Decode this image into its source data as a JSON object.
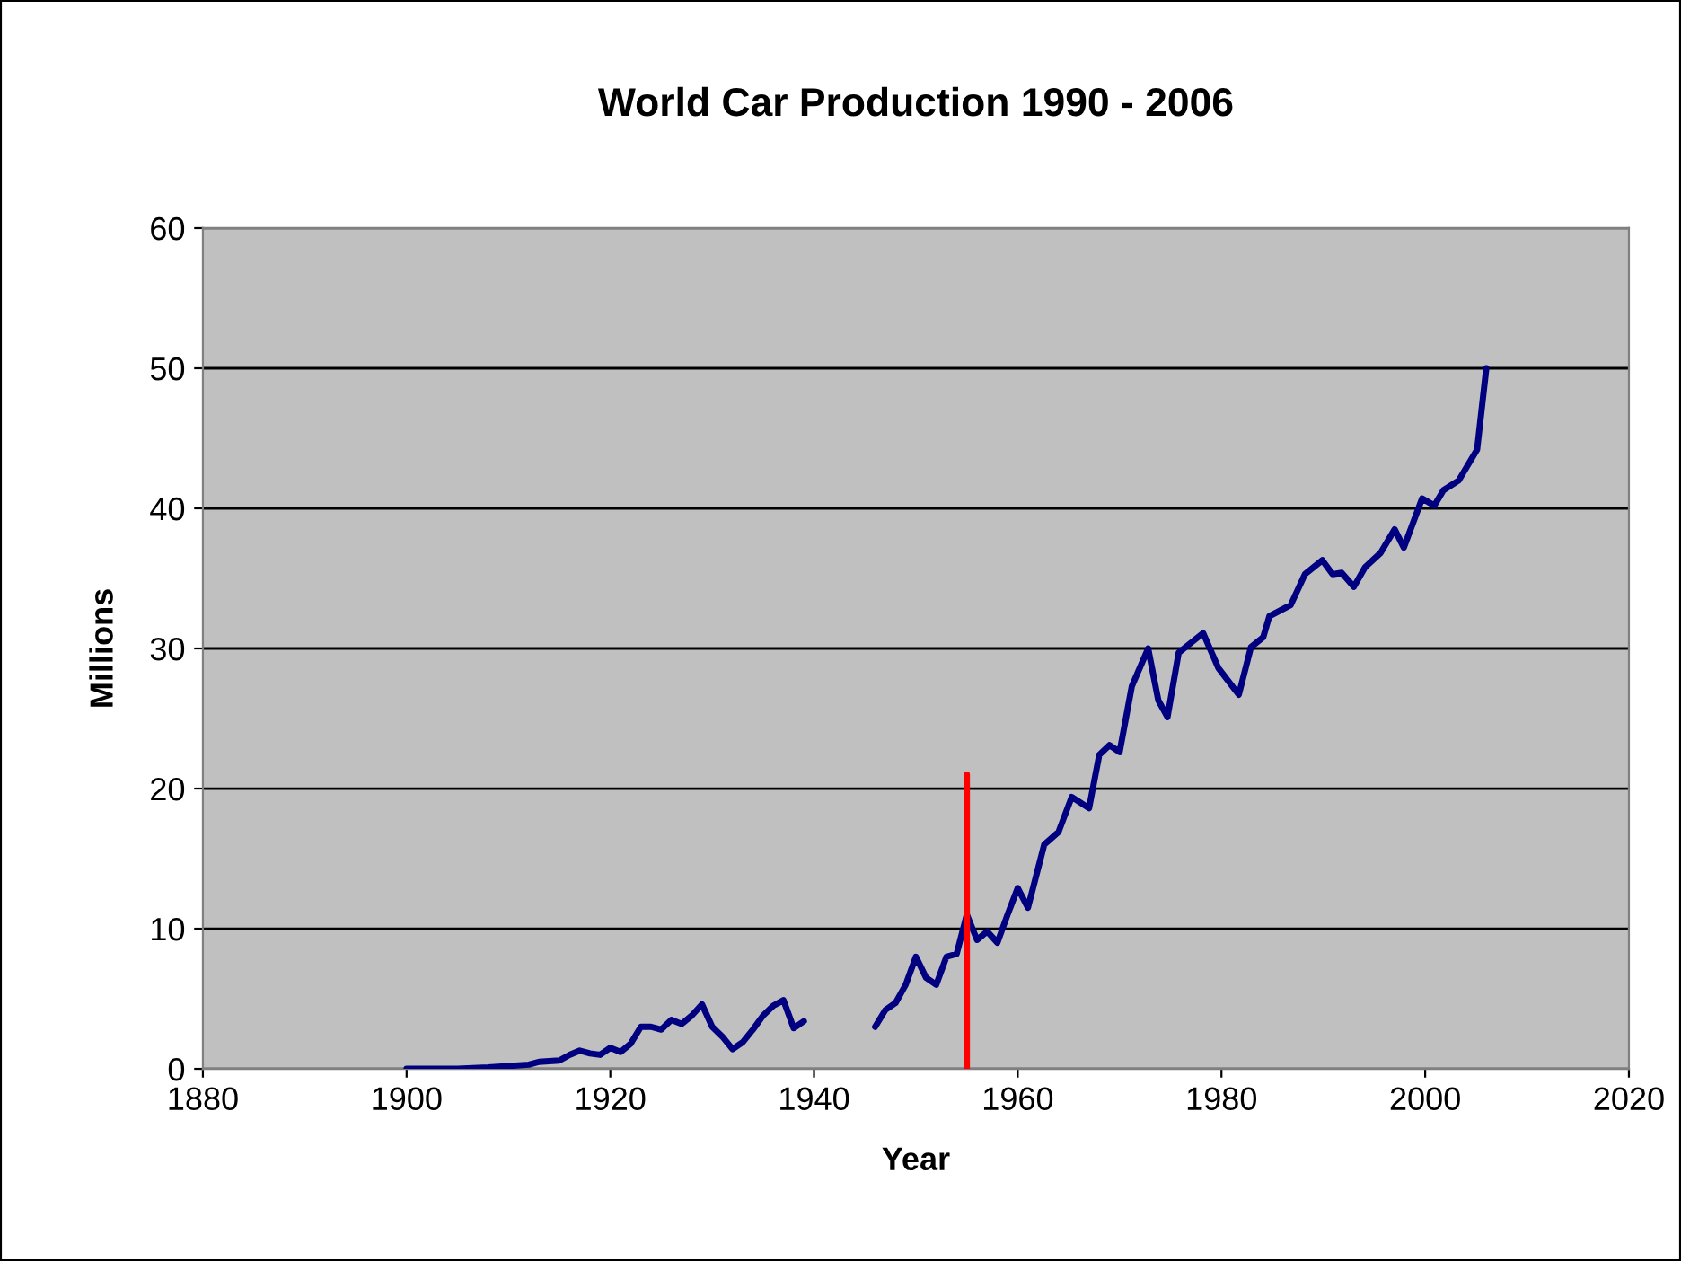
{
  "chart_data": {
    "type": "line",
    "title": "World Car Production 1990 - 2006",
    "xlabel": "Year",
    "ylabel": "Millions",
    "xlim": [
      1880,
      2020
    ],
    "xticks": [
      1880,
      1900,
      1920,
      1940,
      1960,
      1980,
      2000,
      2020
    ],
    "ylim": [
      0,
      60
    ],
    "yticks": [
      0,
      10,
      20,
      30,
      40,
      50,
      60
    ],
    "grid": "y",
    "marker": "none",
    "line_style": "solid",
    "series": [
      {
        "color": "#000080",
        "x": [
          1900,
          1905,
          1908,
          1910,
          1912,
          1913,
          1915,
          1916,
          1917,
          1918,
          1919,
          1920,
          1921,
          1922,
          1923,
          1924,
          1925,
          1926,
          1927,
          1928,
          1929,
          1930,
          1931,
          1932,
          1933,
          1934,
          1935,
          1936,
          1937,
          1938,
          1939,
          1942,
          1946,
          1947,
          1948,
          1949,
          1950,
          1951,
          1952,
          1953,
          1954,
          1955,
          1956,
          1957,
          1958,
          1959,
          1960,
          1961,
          1962.6,
          1964,
          1965.3,
          1967,
          1968,
          1969,
          1970,
          1971.2,
          1972.8,
          1973.8,
          1974.7,
          1975.8,
          1978.2,
          1979.7,
          1981.7,
          1982.9,
          1984.1,
          1984.7,
          1986.8,
          1988.2,
          1989.9,
          1990.9,
          1991.8,
          1993,
          1994.1,
          1995.6,
          1997,
          1997.9,
          1999.7,
          2000.9,
          2001.8,
          2003.3,
          2005.1,
          2006
        ],
        "values": [
          0,
          0,
          0.1,
          0.2,
          0.3,
          0.5,
          0.6,
          1.0,
          1.3,
          1.1,
          1.0,
          1.5,
          1.2,
          1.8,
          3.0,
          3.0,
          2.8,
          3.5,
          3.2,
          3.8,
          4.6,
          3.0,
          2.3,
          1.4,
          1.9,
          2.8,
          3.8,
          4.5,
          4.9,
          2.9,
          3.4,
          null,
          3.0,
          4.2,
          4.7,
          6.0,
          8.0,
          6.5,
          6.0,
          8.0,
          8.2,
          11.0,
          9.2,
          9.8,
          9.0,
          11.0,
          12.9,
          11.5,
          16.0,
          16.9,
          19.4,
          18.6,
          22.4,
          23.1,
          22.6,
          27.3,
          30.0,
          26.3,
          25.1,
          29.7,
          31.1,
          28.6,
          26.7,
          30.1,
          30.8,
          32.3,
          33.1,
          35.3,
          36.3,
          35.3,
          35.4,
          34.4,
          35.8,
          36.8,
          38.5,
          37.2,
          40.7,
          40.2,
          41.3,
          42.0,
          44.2,
          50.0
        ]
      },
      {
        "color": "#ff0000",
        "x": [
          1955,
          1955
        ],
        "values": [
          0,
          21
        ]
      }
    ]
  }
}
